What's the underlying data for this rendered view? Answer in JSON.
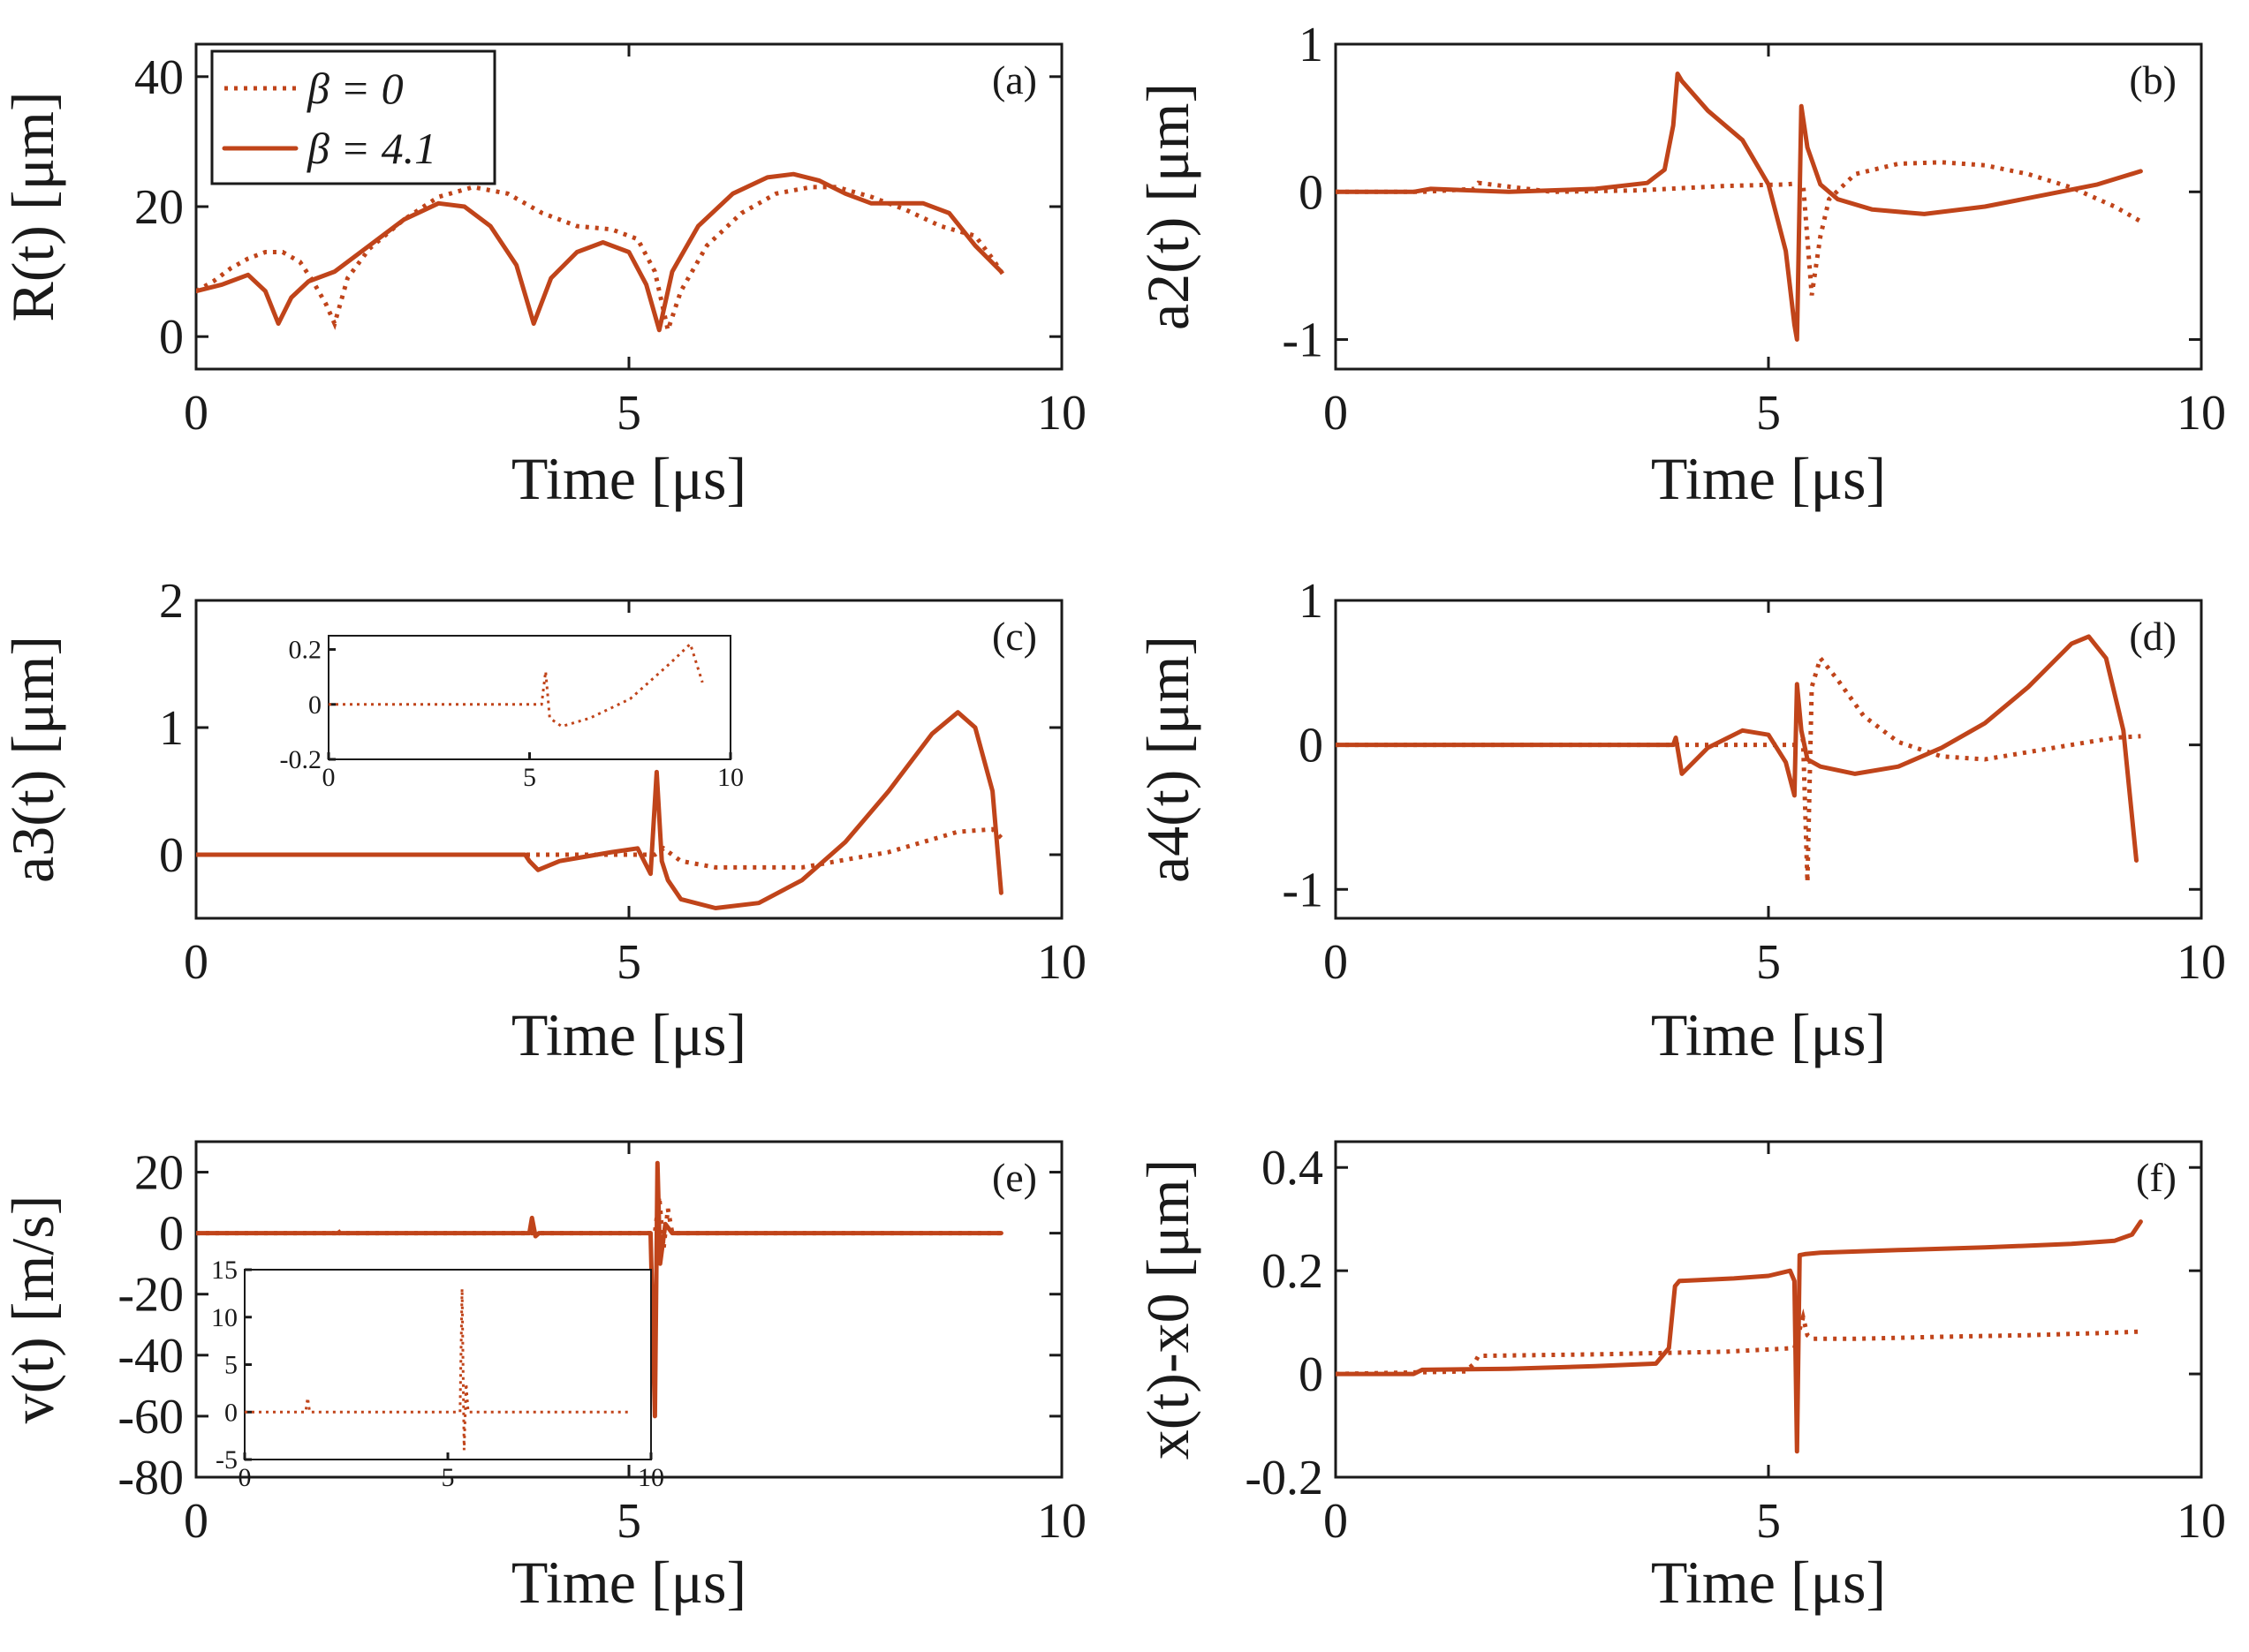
{
  "colors": {
    "series": "#c0441a",
    "axis": "#1a1a1a"
  },
  "chart_data": [
    {
      "type": "line",
      "panel": "(a)",
      "ylabel": "R(t) [μm]",
      "xlabel": "Time [μs]",
      "xlim": [
        0,
        10
      ],
      "ylim": [
        -5,
        45
      ],
      "xticks": [
        0,
        5,
        10
      ],
      "yticks": [
        0,
        20,
        40
      ],
      "legend": {
        "placement": "top-left",
        "entries": [
          "β = 0",
          "β = 4.1"
        ]
      },
      "series": [
        {
          "name": "β = 0",
          "style": "dotted",
          "x": [
            0,
            0.2,
            0.4,
            0.6,
            0.8,
            1.0,
            1.2,
            1.35,
            1.5,
            1.6,
            1.75,
            2.0,
            2.4,
            2.8,
            3.2,
            3.6,
            4.0,
            4.4,
            4.8,
            5.1,
            5.3,
            5.45,
            5.6,
            5.9,
            6.3,
            6.7,
            7.1,
            7.4,
            7.8,
            8.2,
            8.6,
            9.0,
            9.2,
            9.35
          ],
          "y": [
            7,
            8.5,
            10.5,
            12,
            13,
            13,
            11.5,
            8.5,
            5,
            2,
            9,
            13.5,
            18,
            21.5,
            23,
            22,
            19,
            17,
            16.5,
            15,
            10,
            1,
            7,
            14,
            19,
            22,
            23,
            23,
            21.5,
            19.5,
            17,
            15.5,
            12,
            9
          ]
        },
        {
          "name": "β = 4.1",
          "style": "solid",
          "x": [
            0,
            0.3,
            0.6,
            0.8,
            0.95,
            1.1,
            1.3,
            1.6,
            2.0,
            2.4,
            2.8,
            3.1,
            3.4,
            3.7,
            3.9,
            4.1,
            4.4,
            4.7,
            5.0,
            5.2,
            5.35,
            5.5,
            5.8,
            6.2,
            6.6,
            6.9,
            7.2,
            7.5,
            7.8,
            8.1,
            8.4,
            8.7,
            9.0,
            9.3
          ],
          "y": [
            7,
            8,
            9.5,
            7,
            2,
            6,
            8.5,
            10,
            14,
            18,
            20.5,
            20,
            17,
            11,
            2,
            9,
            13,
            14.5,
            13,
            8,
            1,
            10,
            17,
            22,
            24.5,
            25,
            24,
            22,
            20.5,
            20.5,
            20.5,
            19,
            14,
            10
          ]
        }
      ]
    },
    {
      "type": "line",
      "panel": "(b)",
      "ylabel": "a2(t) [μm]",
      "xlabel": "Time [μs]",
      "xlim": [
        0,
        10
      ],
      "ylim": [
        -1.2,
        1
      ],
      "xticks": [
        0,
        5,
        10
      ],
      "yticks": [
        -1,
        0,
        1
      ],
      "series": [
        {
          "name": "β = 0",
          "style": "dotted",
          "x": [
            0,
            1.0,
            1.6,
            1.65,
            2.5,
            3.5,
            4.5,
            5.2,
            5.4,
            5.5,
            5.55,
            5.6,
            5.7,
            6.0,
            6.5,
            7.0,
            7.5,
            8.0,
            8.5,
            9.0,
            9.3
          ],
          "y": [
            0,
            0,
            0.02,
            0.06,
            0,
            0.01,
            0.04,
            0.05,
            0.06,
            -0.7,
            -0.5,
            -0.3,
            -0.05,
            0.12,
            0.19,
            0.2,
            0.18,
            0.12,
            0.03,
            -0.1,
            -0.2
          ]
        },
        {
          "name": "β = 4.1",
          "style": "solid",
          "x": [
            0,
            0.9,
            1.1,
            2.0,
            3.0,
            3.6,
            3.8,
            3.9,
            3.95,
            4.0,
            4.3,
            4.7,
            5.0,
            5.2,
            5.3,
            5.33,
            5.38,
            5.45,
            5.6,
            5.8,
            6.2,
            6.8,
            7.5,
            8.2,
            8.8,
            9.3
          ],
          "y": [
            0,
            0,
            0.02,
            0,
            0.02,
            0.06,
            0.15,
            0.45,
            0.8,
            0.75,
            0.55,
            0.35,
            0.05,
            -0.4,
            -0.9,
            -1.0,
            0.58,
            0.3,
            0.05,
            -0.05,
            -0.12,
            -0.15,
            -0.1,
            -0.02,
            0.05,
            0.14
          ]
        }
      ]
    },
    {
      "type": "line",
      "panel": "(c)",
      "ylabel": "a3(t) [μm]",
      "xlabel": "Time [μs]",
      "xlim": [
        0,
        10
      ],
      "ylim": [
        -0.5,
        2
      ],
      "xticks": [
        0,
        5,
        10
      ],
      "yticks": [
        0,
        1,
        2
      ],
      "series": [
        {
          "name": "β = 0",
          "style": "dotted",
          "x": [
            0,
            5.3,
            5.4,
            5.6,
            6.0,
            7.0,
            8.0,
            8.8,
            9.2,
            9.35
          ],
          "y": [
            0,
            0,
            0.05,
            -0.05,
            -0.1,
            -0.1,
            0.02,
            0.18,
            0.2,
            0.1
          ]
        },
        {
          "name": "β = 4.1",
          "style": "solid",
          "x": [
            0,
            3.8,
            3.85,
            3.95,
            4.2,
            4.8,
            5.1,
            5.25,
            5.32,
            5.38,
            5.45,
            5.6,
            6.0,
            6.5,
            7.0,
            7.5,
            8.0,
            8.5,
            8.8,
            9.0,
            9.2,
            9.3
          ],
          "y": [
            0,
            0,
            -0.05,
            -0.12,
            -0.05,
            0.02,
            0.05,
            -0.15,
            0.65,
            -0.05,
            -0.2,
            -0.35,
            -0.42,
            -0.38,
            -0.2,
            0.1,
            0.5,
            0.95,
            1.12,
            1.0,
            0.5,
            -0.3
          ]
        }
      ],
      "inset": {
        "xlim": [
          0,
          10
        ],
        "ylim": [
          -0.2,
          0.25
        ],
        "xticks": [
          0,
          5,
          10
        ],
        "yticks": [
          -0.2,
          0,
          0.2
        ],
        "series": [
          {
            "name": "β = 0",
            "style": "dotted",
            "x": [
              0,
              5.3,
              5.4,
              5.5,
              5.8,
              6.5,
              7.5,
              8.5,
              9.0,
              9.3
            ],
            "y": [
              0,
              0,
              0.12,
              -0.05,
              -0.08,
              -0.05,
              0.02,
              0.15,
              0.22,
              0.08
            ]
          }
        ]
      }
    },
    {
      "type": "line",
      "panel": "(d)",
      "ylabel": "a4(t) [μm]",
      "xlabel": "Time [μs]",
      "xlim": [
        0,
        10
      ],
      "ylim": [
        -1.2,
        1
      ],
      "xticks": [
        0,
        5,
        10
      ],
      "yticks": [
        -1,
        0,
        1
      ],
      "series": [
        {
          "name": "β = 0",
          "style": "dotted",
          "x": [
            0,
            5.3,
            5.4,
            5.45,
            5.5,
            5.6,
            5.8,
            6.1,
            6.5,
            7.0,
            7.5,
            8.0,
            8.5,
            9.0,
            9.3
          ],
          "y": [
            0,
            0,
            0.03,
            -0.95,
            0.4,
            0.6,
            0.45,
            0.2,
            0.02,
            -0.08,
            -0.1,
            -0.05,
            0.0,
            0.05,
            0.06
          ]
        },
        {
          "name": "β = 4.1",
          "style": "solid",
          "x": [
            0,
            3.9,
            3.93,
            4.0,
            4.3,
            4.7,
            5.0,
            5.2,
            5.3,
            5.33,
            5.38,
            5.45,
            5.6,
            6.0,
            6.5,
            7.0,
            7.5,
            8.0,
            8.5,
            8.7,
            8.9,
            9.1,
            9.25
          ],
          "y": [
            0,
            0,
            0.05,
            -0.2,
            -0.02,
            0.1,
            0.07,
            -0.12,
            -0.35,
            0.42,
            0.1,
            -0.1,
            -0.15,
            -0.2,
            -0.15,
            -0.02,
            0.15,
            0.4,
            0.7,
            0.75,
            0.6,
            0.1,
            -0.8
          ]
        }
      ]
    },
    {
      "type": "line",
      "panel": "(e)",
      "ylabel": "v(t) [m/s]",
      "xlabel": "Time [μs]",
      "xlim": [
        0,
        10
      ],
      "ylim": [
        -80,
        30
      ],
      "xticks": [
        0,
        5,
        10
      ],
      "yticks": [
        -80,
        -60,
        -40,
        -20,
        0,
        20
      ],
      "series": [
        {
          "name": "β = 0",
          "style": "dotted",
          "x": [
            0,
            1.6,
            1.62,
            1.66,
            5.3,
            5.35,
            5.4,
            5.45,
            5.5,
            9.35
          ],
          "y": [
            0,
            0,
            1.5,
            0,
            0,
            12,
            -5,
            8,
            0,
            0
          ]
        },
        {
          "name": "β = 4.1",
          "style": "solid",
          "x": [
            0,
            3.85,
            3.88,
            3.92,
            3.96,
            5.25,
            5.3,
            5.33,
            5.36,
            5.42,
            5.5,
            9.3
          ],
          "y": [
            0,
            0,
            5,
            -1,
            0,
            0,
            -60,
            23,
            -10,
            3,
            0,
            0
          ]
        }
      ],
      "inset": {
        "xlim": [
          0,
          10
        ],
        "ylim": [
          -5,
          15
        ],
        "xticks": [
          0,
          5,
          10
        ],
        "yticks": [
          -5,
          0,
          5,
          10,
          15
        ],
        "series": [
          {
            "name": "β = 0",
            "style": "dotted",
            "x": [
              0,
              1.5,
              1.55,
              1.6,
              5.3,
              5.35,
              5.4,
              5.45,
              5.5,
              9.5
            ],
            "y": [
              0,
              0,
              1.5,
              0,
              0,
              13,
              -4,
              3,
              0,
              0
            ]
          }
        ]
      }
    },
    {
      "type": "line",
      "panel": "(f)",
      "ylabel": "x(t)-x0 [μm]",
      "xlabel": "Time [μs]",
      "xlim": [
        0,
        10
      ],
      "ylim": [
        -0.2,
        0.45
      ],
      "xticks": [
        0,
        5,
        10
      ],
      "yticks": [
        -0.2,
        0,
        0.2,
        0.4
      ],
      "series": [
        {
          "name": "β = 0",
          "style": "dotted",
          "x": [
            0,
            1.5,
            1.6,
            1.65,
            3.0,
            4.5,
            5.3,
            5.4,
            5.45,
            5.5,
            6.0,
            7.0,
            8.0,
            9.0,
            9.3
          ],
          "y": [
            0,
            0.005,
            0.02,
            0.035,
            0.038,
            0.043,
            0.05,
            0.11,
            0.075,
            0.068,
            0.068,
            0.072,
            0.075,
            0.08,
            0.082
          ]
        },
        {
          "name": "β = 4.1",
          "style": "solid",
          "x": [
            0,
            0.9,
            1.0,
            2.0,
            3.0,
            3.7,
            3.85,
            3.92,
            3.97,
            4.2,
            4.6,
            5.0,
            5.25,
            5.3,
            5.33,
            5.36,
            5.42,
            5.6,
            6.5,
            7.5,
            8.5,
            9.0,
            9.2,
            9.3
          ],
          "y": [
            0,
            0,
            0.008,
            0.01,
            0.015,
            0.02,
            0.05,
            0.17,
            0.18,
            0.182,
            0.185,
            0.19,
            0.2,
            0.18,
            -0.15,
            0.23,
            0.232,
            0.235,
            0.24,
            0.245,
            0.252,
            0.258,
            0.27,
            0.295
          ]
        }
      ]
    }
  ]
}
